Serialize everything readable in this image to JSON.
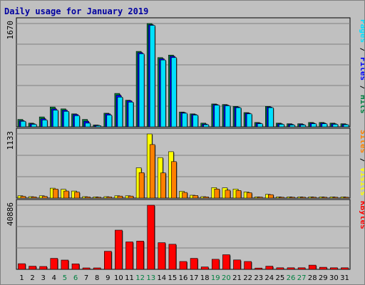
{
  "chart_data": {
    "type": "bar",
    "title": "Daily usage for January 2019",
    "days": [
      "1",
      "2",
      "3",
      "4",
      "5",
      "6",
      "7",
      "8",
      "9",
      "10",
      "11",
      "12",
      "13",
      "14",
      "15",
      "16",
      "17",
      "18",
      "19",
      "20",
      "21",
      "22",
      "23",
      "24",
      "25",
      "26",
      "27",
      "28",
      "29",
      "30",
      "31"
    ],
    "weekend_days": [
      "5",
      "6",
      "12",
      "13",
      "19",
      "20",
      "26",
      "27"
    ],
    "panels": [
      {
        "id": "pages-files-hits",
        "scale_label": "1670",
        "ymax": 1670,
        "legend": [
          {
            "text": "Pages",
            "color": "#00e0ff"
          },
          {
            "text": " / ",
            "color": "#000000"
          },
          {
            "text": "Files",
            "color": "#0000ff"
          },
          {
            "text": " / ",
            "color": "#000000"
          },
          {
            "text": "Hits",
            "color": "#008040"
          }
        ],
        "series": [
          {
            "name": "Hits",
            "color": "#008040",
            "values": [
              120,
              60,
              160,
              320,
              290,
              210,
              120,
              30,
              220,
              540,
              430,
              1220,
              1670,
              1120,
              1160,
              240,
              210,
              60,
              370,
              360,
              330,
              230,
              70,
              330,
              60,
              50,
              50,
              70,
              70,
              60,
              50
            ]
          },
          {
            "name": "Files",
            "color": "#0000ff",
            "values": [
              100,
              50,
              130,
              290,
              270,
              200,
              90,
              25,
              210,
              510,
              420,
              1200,
              1650,
              1100,
              1140,
              230,
              200,
              45,
              360,
              350,
              320,
              220,
              60,
              320,
              50,
              40,
              40,
              60,
              60,
              50,
              40
            ]
          },
          {
            "name": "Pages",
            "color": "#00e0ff",
            "values": [
              90,
              40,
              110,
              270,
              250,
              180,
              60,
              20,
              190,
              480,
              400,
              1180,
              1640,
              1080,
              1120,
              220,
              190,
              35,
              350,
              340,
              310,
              210,
              50,
              310,
              40,
              30,
              30,
              50,
              50,
              40,
              35
            ]
          }
        ]
      },
      {
        "id": "sites-visits",
        "scale_label": "1133",
        "ymax": 1133,
        "legend": [
          {
            "text": "Sites",
            "color": "#ff8000"
          },
          {
            "text": " / ",
            "color": "#000000"
          },
          {
            "text": "Visits",
            "color": "#ffff00"
          }
        ],
        "series": [
          {
            "name": "Visits",
            "color": "#ffff00",
            "values": [
              40,
              25,
              40,
              175,
              155,
              125,
              25,
              20,
              25,
              40,
              40,
              535,
              1133,
              715,
              820,
              120,
              50,
              25,
              185,
              180,
              160,
              110,
              20,
              65,
              20,
              20,
              20,
              20,
              20,
              20,
              20
            ]
          },
          {
            "name": "Sites",
            "color": "#ff8000",
            "values": [
              30,
              20,
              30,
              160,
              125,
              105,
              20,
              15,
              20,
              35,
              35,
              450,
              945,
              445,
              645,
              100,
              45,
              20,
              160,
              140,
              135,
              95,
              18,
              60,
              15,
              15,
              15,
              15,
              15,
              15,
              15
            ]
          }
        ]
      },
      {
        "id": "kbytes",
        "scale_label": "40886",
        "ymax": 40886,
        "legend": [
          {
            "text": "KBytes",
            "color": "#ff0000"
          }
        ],
        "series": [
          {
            "name": "KBytes",
            "color": "#ff0000",
            "values": [
              3600,
              2000,
              1800,
              7000,
              5900,
              3500,
              900,
              900,
              11500,
              25000,
              17500,
              18000,
              40886,
              17000,
              16000,
              5000,
              7000,
              1500,
              6400,
              9300,
              6000,
              5000,
              800,
              2000,
              1000,
              1000,
              1000,
              2700,
              1300,
              1000,
              1000
            ]
          }
        ]
      }
    ],
    "grid": true,
    "legend_position": "right"
  }
}
